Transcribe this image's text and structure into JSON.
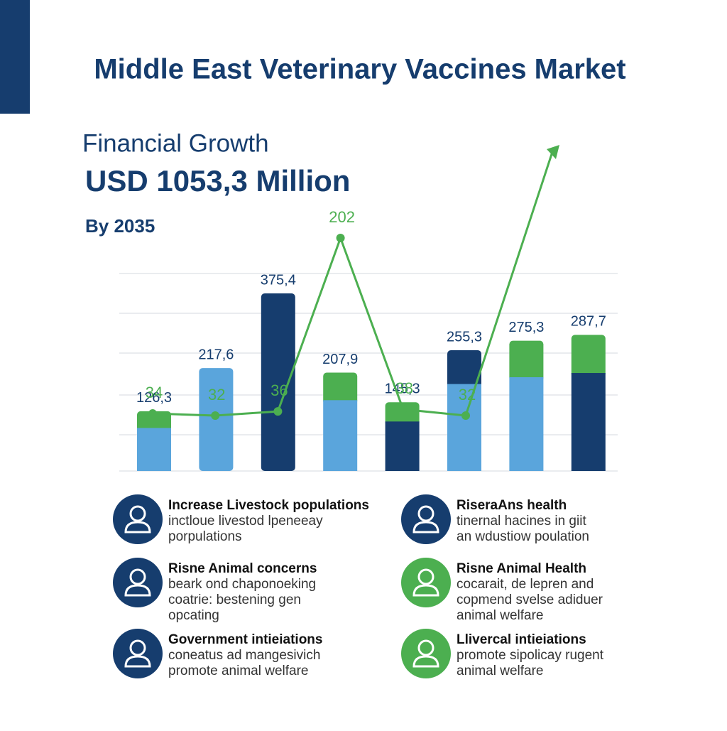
{
  "chart_data": {
    "type": "bar",
    "title": "Middle East Veterinary Vaccines Market",
    "subtitle": "Financial Growth",
    "headline": "USD 1053,3 Million",
    "note": "By 2035",
    "values": [
      126.3,
      217.6,
      375.4,
      207.9,
      145.3,
      255.3,
      275.3,
      287.7
    ],
    "value_labels": [
      "126,3",
      "217,6",
      "375,4",
      "207,9",
      "145,3",
      "255,3",
      "275,3",
      "287,7"
    ],
    "bar_colors": [
      [
        "#5aa5dc",
        "#4caf50"
      ],
      [
        "#5aa5dc"
      ],
      [
        "#163d6e"
      ],
      [
        "#5aa5dc",
        "#4caf50"
      ],
      [
        "#163d6e",
        "#4caf50"
      ],
      [
        "#5aa5dc",
        "#163d6e"
      ],
      [
        "#5aa5dc",
        "#4caf50"
      ],
      [
        "#163d6e",
        "#4caf50"
      ]
    ],
    "grid": true,
    "line": {
      "type": "line",
      "color": "#4caf50",
      "values": [
        34,
        32,
        36,
        202,
        38,
        32
      ]
    },
    "features": [
      {
        "title": "Increase Livestock populations",
        "lines": [
          "inctloue livestod lpeneeay",
          "porpulations"
        ],
        "color": "#163d6e"
      },
      {
        "title": "Risne Animal concerns",
        "lines": [
          "beark ond chaponoeking",
          "coatrie: bestening gen",
          "opcating"
        ],
        "color": "#163d6e"
      },
      {
        "title": "Government intieiations",
        "lines": [
          "coneatus ad mangesivich",
          "promote animal welfare"
        ],
        "color": "#163d6e"
      },
      {
        "title": "RiseraAns health",
        "lines": [
          "tinernal hacines in giit",
          "an wdustiow poulation"
        ],
        "color": "#163d6e"
      },
      {
        "title": "Risne  Animal Health",
        "lines": [
          "cocarait, de lepren and",
          "copmend svelse adiduer",
          "animal welfare"
        ],
        "color": "#4caf50"
      },
      {
        "title": "Llivercal intieiations",
        "lines": [
          "promote sipolicay rugent",
          "animal welfare"
        ],
        "color": "#4caf50"
      }
    ]
  }
}
